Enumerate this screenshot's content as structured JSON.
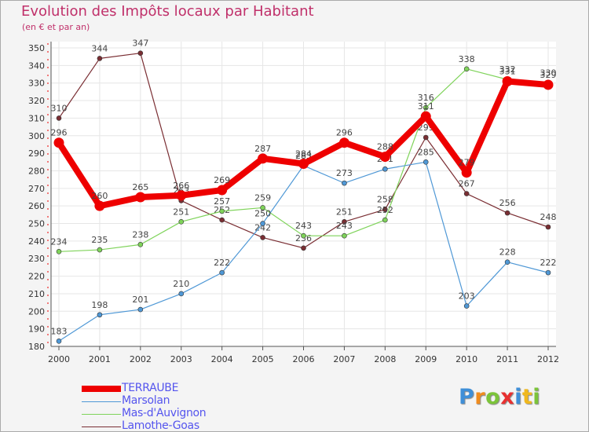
{
  "chart_data": {
    "type": "line",
    "title": "Evolution des Impôts locaux par Habitant",
    "subtitle": "(en € et par an)",
    "xlabel": "",
    "ylabel": "",
    "x": [
      "2000",
      "2001",
      "2002",
      "2003",
      "2004",
      "2005",
      "2006",
      "2007",
      "2008",
      "2009",
      "2010",
      "2011",
      "2012"
    ],
    "ylim": [
      180,
      350
    ],
    "yticks": [
      180,
      190,
      200,
      210,
      220,
      230,
      240,
      250,
      260,
      270,
      280,
      290,
      300,
      310,
      320,
      330,
      340,
      350
    ],
    "series": [
      {
        "name": "Lamothe-Goas",
        "color": "#7a2e33",
        "values": [
          310,
          344,
          347,
          263,
          252,
          242,
          236,
          251,
          258,
          299,
          267,
          256,
          248
        ]
      },
      {
        "name": "Mas-d'Auvignon",
        "color": "#7fd35a",
        "values": [
          234,
          235,
          238,
          251,
          257,
          259,
          243,
          243,
          252,
          316,
          338,
          332,
          330
        ]
      },
      {
        "name": "Marsolan",
        "color": "#4f98d6",
        "values": [
          183,
          198,
          201,
          210,
          222,
          250,
          283,
          273,
          281,
          285,
          203,
          228,
          222
        ]
      },
      {
        "name": "TERRAUBE",
        "color": "#ee0000",
        "values": [
          296,
          260,
          265,
          266,
          269,
          287,
          284,
          296,
          288,
          311,
          279,
          331,
          329
        ]
      }
    ],
    "legend": [
      "TERRAUBE",
      "Marsolan",
      "Mas-d'Auvignon",
      "Lamothe-Goas"
    ],
    "legend_position": "bottom-left"
  },
  "logo": {
    "letters": [
      "P",
      "r",
      "o",
      "x",
      "i",
      "t",
      "i"
    ],
    "colors": [
      "#3f8fd8",
      "#f08c1e",
      "#7cc43a",
      "#e83030",
      "#3f8fd8",
      "#f0b81e",
      "#7cc43a"
    ]
  }
}
